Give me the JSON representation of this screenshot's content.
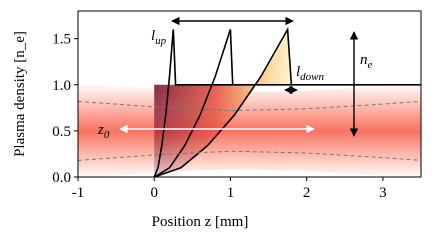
{
  "chart_data": {
    "type": "line",
    "xlabel": "Position z [mm]",
    "ylabel": "Plasma density [n_e]",
    "xlim": [
      -1,
      3.5
    ],
    "xticks": [
      -1,
      0,
      1,
      2,
      3
    ],
    "ylim": [
      0,
      1.8
    ],
    "yticks": [
      {
        "value": 0,
        "label": "0.0"
      },
      {
        "value": 0.5,
        "label": "0.5"
      },
      {
        "value": 1,
        "label": "1.0"
      },
      {
        "value": 1.5,
        "label": "1.5"
      }
    ],
    "series": [
      {
        "color": "#000000",
        "x": [
          0,
          0.05,
          0.1,
          0.15,
          0.2,
          0.25,
          0.28,
          3.5
        ],
        "values": [
          0,
          0.1,
          0.34,
          0.67,
          1.09,
          1.6,
          1.0,
          1.0
        ]
      },
      {
        "color": "#000000",
        "x": [
          0,
          0.2,
          0.4,
          0.6,
          0.8,
          1.0,
          1.03
        ],
        "values": [
          0,
          0.1,
          0.34,
          0.67,
          1.09,
          1.6,
          1.0
        ]
      },
      {
        "color": "#000000",
        "x": [
          0,
          0.35,
          0.7,
          1.05,
          1.4,
          1.75,
          1.8
        ],
        "values": [
          0,
          0.1,
          0.34,
          0.67,
          1.09,
          1.6,
          1.0
        ]
      },
      {
        "color": "#777777",
        "style": "dashed",
        "x": [
          -1,
          0,
          1,
          2,
          3,
          3.5
        ],
        "values": [
          0.82,
          0.76,
          0.72,
          0.74,
          0.79,
          0.82
        ]
      },
      {
        "color": "#777777",
        "style": "dashed",
        "x": [
          -1,
          0,
          1,
          2,
          3,
          3.5
        ],
        "values": [
          0.18,
          0.24,
          0.28,
          0.26,
          0.21,
          0.18
        ]
      }
    ],
    "annotations": [
      {
        "text": "l",
        "sub": "up"
      },
      {
        "text": "l",
        "sub": "down"
      },
      {
        "text": "n",
        "sub": "e"
      },
      {
        "text": "z",
        "sub": "0"
      }
    ]
  }
}
